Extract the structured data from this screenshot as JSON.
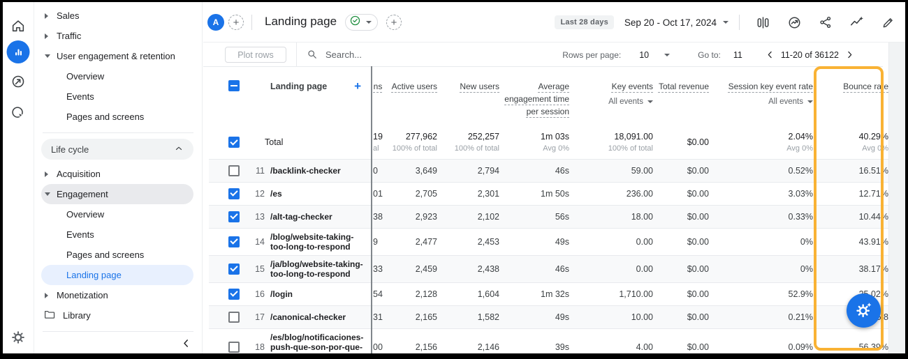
{
  "app": {
    "accent_color": "#1a73e8",
    "highlight_color": "#f9b234"
  },
  "rail": {
    "icons": [
      {
        "name": "home-icon"
      },
      {
        "name": "reports-icon",
        "active": true
      },
      {
        "name": "explore-icon"
      },
      {
        "name": "advertising-icon"
      }
    ],
    "settings_icon": "admin-gear-icon"
  },
  "sidebar": {
    "items": [
      {
        "type": "parent-collapsed",
        "label": "Sales"
      },
      {
        "type": "parent-collapsed",
        "label": "Traffic"
      },
      {
        "type": "parent-expanded",
        "label": "User engagement & retention"
      },
      {
        "type": "child",
        "label": "Overview"
      },
      {
        "type": "child",
        "label": "Events"
      },
      {
        "type": "child",
        "label": "Pages and screens"
      },
      {
        "type": "divider"
      },
      {
        "type": "section",
        "label": "Life cycle"
      },
      {
        "type": "parent-collapsed",
        "label": "Acquisition"
      },
      {
        "type": "parent-expanded",
        "label": "Engagement",
        "highlight": true
      },
      {
        "type": "child",
        "label": "Overview"
      },
      {
        "type": "child",
        "label": "Events"
      },
      {
        "type": "child",
        "label": "Pages and screens"
      },
      {
        "type": "child",
        "label": "Landing page",
        "active": true
      },
      {
        "type": "parent-collapsed",
        "label": "Monetization"
      },
      {
        "type": "library",
        "label": "Library"
      },
      {
        "type": "divider"
      },
      {
        "type": "collapse"
      }
    ]
  },
  "topbar": {
    "avatar": "A",
    "title": "Landing page",
    "date_range_label": "Last 28 days",
    "date_range": "Sep 20 - Oct 17, 2024",
    "action_icons": [
      "comparison-icon",
      "insights-circle-icon",
      "share-icon",
      "sparkline-insights-icon",
      "edit-pencil-icon"
    ]
  },
  "toolbar": {
    "plot_rows": "Plot rows",
    "search_placeholder": "Search...",
    "rows_per_page_label": "Rows per page:",
    "rows_per_page": "10",
    "goto_label": "Go to:",
    "goto_value": "11",
    "range": "11-20 of 36122"
  },
  "table": {
    "select_all_state": "indeterminate",
    "dimension_header": "Landing page",
    "partial_header": "ns",
    "metric_headers": [
      {
        "label": "Active users"
      },
      {
        "label": "New users"
      },
      {
        "label": "Average engagement time per session"
      },
      {
        "label": "Key events",
        "filter": "All events"
      },
      {
        "label": "Total revenue"
      },
      {
        "label": "Session key event rate",
        "filter": "All events"
      },
      {
        "label": "Bounce rate",
        "highlighted": true
      }
    ],
    "total": {
      "label": "Total",
      "checked": true,
      "partial": "19",
      "partial_sub": "al",
      "cells": [
        {
          "main": "277,962",
          "sub": "100% of total"
        },
        {
          "main": "252,257",
          "sub": "100% of total"
        },
        {
          "main": "1m 03s",
          "sub": "Avg 0%"
        },
        {
          "main": "18,091.00",
          "sub": "100% of total"
        },
        {
          "main": "$0.00",
          "sub": ""
        },
        {
          "main": "2.04%",
          "sub": "Avg 0%"
        },
        {
          "main": "40.29%",
          "sub": "Avg 0%"
        }
      ]
    },
    "rows": [
      {
        "num": "11",
        "name": "/backlink-checker",
        "checked": false,
        "partial": "0",
        "cells": [
          "3,649",
          "2,794",
          "46s",
          "59.00",
          "$0.00",
          "0.52%",
          "16.51%"
        ]
      },
      {
        "num": "12",
        "name": "/es",
        "checked": true,
        "partial": "01",
        "cells": [
          "2,705",
          "2,301",
          "1m 50s",
          "236.00",
          "$0.00",
          "3.03%",
          "12.71%"
        ]
      },
      {
        "num": "13",
        "name": "/alt-tag-checker",
        "checked": true,
        "partial": "38",
        "cells": [
          "2,923",
          "2,102",
          "56s",
          "18.00",
          "$0.00",
          "0.33%",
          "10.44%"
        ]
      },
      {
        "num": "14",
        "name": "/blog/website-taking-too-long-to-respond",
        "checked": true,
        "partial": "9",
        "cells": [
          "2,477",
          "2,453",
          "49s",
          "0.00",
          "$0.00",
          "0%",
          "43.91%"
        ]
      },
      {
        "num": "15",
        "name": "/ja/blog/website-taking-too-long-to-respond",
        "checked": true,
        "partial": "33",
        "cells": [
          "2,459",
          "2,438",
          "46s",
          "0.00",
          "$0.00",
          "0%",
          "38.17%"
        ]
      },
      {
        "num": "16",
        "name": "/login",
        "checked": true,
        "partial": "54",
        "cells": [
          "2,128",
          "1,604",
          "1m 32s",
          "1,710.00",
          "$0.00",
          "52.9%",
          "25.02%"
        ]
      },
      {
        "num": "17",
        "name": "/canonical-checker",
        "checked": false,
        "partial": "31",
        "cells": [
          "2,165",
          "1,582",
          "49s",
          "10.00",
          "$0.00",
          "0.21%",
          "5.8"
        ]
      },
      {
        "num": "18",
        "name": "/es/blog/notificaciones-push-que-son-por-que-usarlas",
        "checked": false,
        "partial": "00",
        "cells": [
          "2,156",
          "2,146",
          "39s",
          "4.00",
          "$0.00",
          "0.09%",
          "56.39%"
        ]
      }
    ]
  },
  "fab": {
    "icon": "assistant-gear-sparkle-icon"
  }
}
